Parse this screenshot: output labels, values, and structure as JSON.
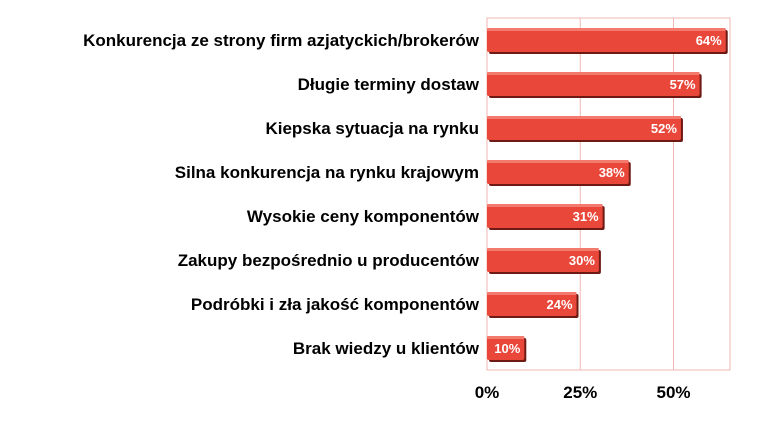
{
  "chart_data": {
    "type": "bar",
    "orientation": "horizontal",
    "categories": [
      "Konkurencja ze strony firm azjatyckich/brokerów",
      "Długie terminy dostaw",
      "Kiepska sytuacja na rynku",
      "Silna konkurencja na rynku krajowym",
      "Wysokie ceny komponentów",
      "Zakupy bezpośrednio u producentów",
      "Podróbki i zła jakość komponentów",
      "Brak wiedzy u klientów"
    ],
    "values": [
      64,
      57,
      52,
      38,
      31,
      30,
      24,
      10
    ],
    "value_labels": [
      "64%",
      "57%",
      "52%",
      "38%",
      "31%",
      "30%",
      "24%",
      "10%"
    ],
    "x_ticks": [
      0,
      25,
      50
    ],
    "x_tick_labels": [
      "0%",
      "25%",
      "50%"
    ],
    "xlim": [
      0,
      66
    ],
    "grid": true,
    "colors": {
      "bar": "#e8473a",
      "bar_shadow": "#6e1a14",
      "plot_border": "#f2b7b2",
      "grid": "#f2b7b2"
    }
  }
}
